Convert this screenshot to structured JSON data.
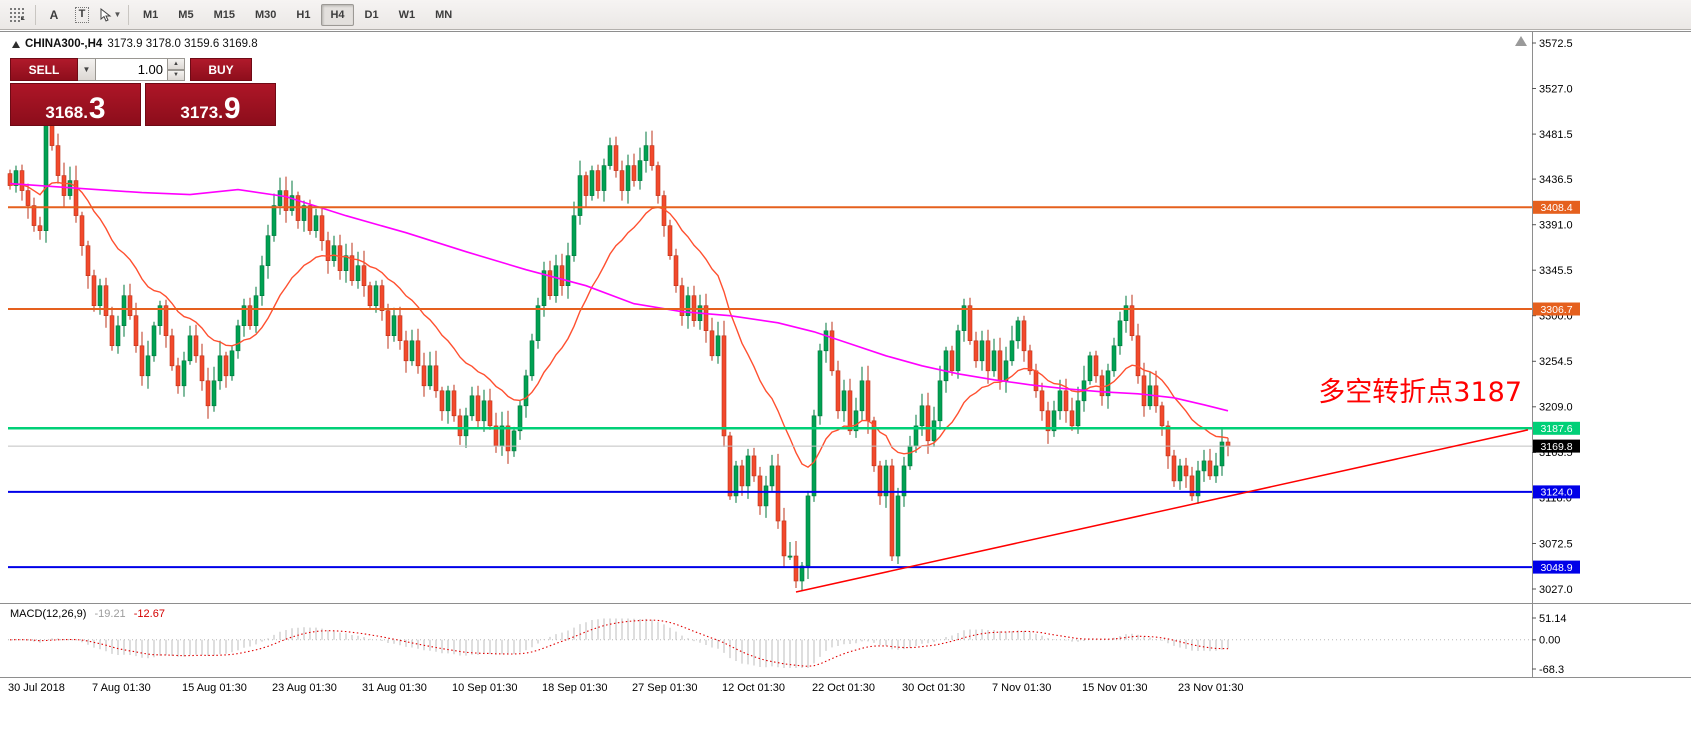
{
  "toolbar": {
    "tool_a": "A",
    "tool_t": "T",
    "timeframes": [
      {
        "label": "M1"
      },
      {
        "label": "M5"
      },
      {
        "label": "M15"
      },
      {
        "label": "M30"
      },
      {
        "label": "H1"
      },
      {
        "label": "H4",
        "active": true
      },
      {
        "label": "D1"
      },
      {
        "label": "W1"
      },
      {
        "label": "MN"
      }
    ]
  },
  "chart_header": {
    "symbol": "CHINA300-,H4",
    "ohlc": "3173.9 3178.0 3159.6 3169.8"
  },
  "trade_panel": {
    "sell_label": "SELL",
    "buy_label": "BUY",
    "volume": "1.00",
    "sell_price": {
      "base": "3168.",
      "pip": "3"
    },
    "buy_price": {
      "base": "3173.",
      "pip": "9"
    }
  },
  "annotation": {
    "text": "多空转折点3187",
    "color": "#ff0000"
  },
  "macd_header": {
    "title": "MACD(12,26,9)",
    "value_main": "-19.21",
    "value_signal": "-12.67"
  },
  "axes": {
    "price_ticks": [
      "3572.5",
      "3527.0",
      "3481.5",
      "3436.5",
      "3391.0",
      "3345.5",
      "3300.0",
      "3254.5",
      "3209.0",
      "3163.5",
      "3118.0",
      "3072.5",
      "3027.0"
    ],
    "macd_ticks": [
      {
        "v": 51.14,
        "label": "51.14"
      },
      {
        "v": 0,
        "label": "0.00"
      },
      {
        "v": -68.3,
        "label": "-68.3"
      }
    ],
    "time_ticks": [
      {
        "i": 0,
        "label": "30 Jul 2018"
      },
      {
        "i": 14,
        "label": "7 Aug 01:30"
      },
      {
        "i": 29,
        "label": "15 Aug 01:30"
      },
      {
        "i": 44,
        "label": "23 Aug 01:30"
      },
      {
        "i": 59,
        "label": "31 Aug 01:30"
      },
      {
        "i": 74,
        "label": "10 Sep 01:30"
      },
      {
        "i": 89,
        "label": "18 Sep 01:30"
      },
      {
        "i": 104,
        "label": "27 Sep 01:30"
      },
      {
        "i": 119,
        "label": "12 Oct 01:30"
      },
      {
        "i": 134,
        "label": "22 Oct 01:30"
      },
      {
        "i": 149,
        "label": "30 Oct 01:30"
      },
      {
        "i": 164,
        "label": "7 Nov 01:30"
      },
      {
        "i": 179,
        "label": "15 Nov 01:30"
      },
      {
        "i": 195,
        "label": "23 Nov 01:30"
      }
    ]
  },
  "colors": {
    "up": "#00a152",
    "up_border": "#00773c",
    "down": "#f2492c",
    "down_border": "#bd3318"
  },
  "chart_data": {
    "type": "candlestick",
    "symbol": "CHINA300-",
    "timeframe": "H4",
    "title": "CHINA300-,H4",
    "current_ohlc": {
      "open": 3173.9,
      "high": 3178.0,
      "low": 3159.6,
      "close": 3169.8
    },
    "price_range": [
      3027.0,
      3572.5
    ],
    "closes": [
      3430,
      3445,
      3425,
      3410,
      3390,
      3385,
      3495,
      3470,
      3440,
      3420,
      3435,
      3400,
      3370,
      3340,
      3310,
      3330,
      3300,
      3270,
      3290,
      3320,
      3300,
      3270,
      3240,
      3260,
      3290,
      3310,
      3280,
      3250,
      3230,
      3255,
      3280,
      3260,
      3235,
      3210,
      3235,
      3260,
      3240,
      3265,
      3290,
      3310,
      3290,
      3320,
      3350,
      3380,
      3410,
      3425,
      3405,
      3420,
      3395,
      3410,
      3385,
      3400,
      3375,
      3355,
      3370,
      3345,
      3360,
      3335,
      3350,
      3330,
      3310,
      3330,
      3305,
      3280,
      3300,
      3275,
      3255,
      3275,
      3250,
      3230,
      3250,
      3225,
      3205,
      3225,
      3200,
      3180,
      3200,
      3220,
      3195,
      3215,
      3190,
      3170,
      3190,
      3165,
      3185,
      3210,
      3240,
      3275,
      3310,
      3345,
      3320,
      3350,
      3330,
      3360,
      3400,
      3440,
      3420,
      3445,
      3425,
      3450,
      3470,
      3445,
      3425,
      3450,
      3435,
      3455,
      3470,
      3450,
      3420,
      3390,
      3360,
      3330,
      3300,
      3320,
      3295,
      3310,
      3285,
      3260,
      3280,
      3180,
      3120,
      3150,
      3130,
      3160,
      3140,
      3110,
      3130,
      3150,
      3095,
      3060,
      3060,
      3035,
      3050,
      3120,
      3200,
      3265,
      3285,
      3245,
      3205,
      3225,
      3185,
      3205,
      3235,
      3195,
      3150,
      3120,
      3150,
      3060,
      3120,
      3150,
      3170,
      3190,
      3210,
      3175,
      3195,
      3235,
      3265,
      3245,
      3285,
      3310,
      3275,
      3255,
      3275,
      3245,
      3265,
      3235,
      3255,
      3275,
      3295,
      3265,
      3245,
      3225,
      3205,
      3185,
      3205,
      3225,
      3205,
      3190,
      3215,
      3235,
      3260,
      3240,
      3220,
      3245,
      3270,
      3295,
      3310,
      3280,
      3240,
      3210,
      3230,
      3210,
      3190,
      3160,
      3135,
      3150,
      3140,
      3120,
      3145,
      3155,
      3140,
      3150,
      3173.9,
      3169.8
    ],
    "hlines": [
      {
        "price": 3408.4,
        "label": "3408.4",
        "color": "#e5601e",
        "width": 2
      },
      {
        "price": 3306.7,
        "label": "3306.7",
        "color": "#e5601e",
        "width": 2
      },
      {
        "price": 3187.6,
        "label": "3187.6",
        "color": "#00d077",
        "width": 2.5
      },
      {
        "price": 3169.8,
        "label": "3169.8",
        "color": "#000000",
        "line_color": "#c0c0c0",
        "width": 1,
        "current": true
      },
      {
        "price": 3124.0,
        "label": "3124.0",
        "color": "#0000e8",
        "width": 2
      },
      {
        "price": 3048.9,
        "label": "3048.9",
        "color": "#0000e8",
        "width": 2
      }
    ],
    "trendline": {
      "i1": 131,
      "p1": 3024,
      "i2": 253,
      "p2": 3186,
      "color": "#ff0000"
    },
    "ma_magenta": {
      "color": "#ff00ff",
      "points": [
        [
          0,
          3432
        ],
        [
          12,
          3427
        ],
        [
          22,
          3423
        ],
        [
          30,
          3421
        ],
        [
          38,
          3426
        ],
        [
          46,
          3419
        ],
        [
          56,
          3400
        ],
        [
          66,
          3383
        ],
        [
          76,
          3364
        ],
        [
          86,
          3346
        ],
        [
          96,
          3330
        ],
        [
          104,
          3312
        ],
        [
          112,
          3304
        ],
        [
          120,
          3300
        ],
        [
          128,
          3293
        ],
        [
          134,
          3284
        ],
        [
          140,
          3272
        ],
        [
          146,
          3260
        ],
        [
          152,
          3250
        ],
        [
          158,
          3242
        ],
        [
          164,
          3236
        ],
        [
          170,
          3231
        ],
        [
          176,
          3227
        ],
        [
          182,
          3224
        ],
        [
          188,
          3222
        ],
        [
          194,
          3218
        ],
        [
          199,
          3211
        ],
        [
          203,
          3205
        ]
      ]
    },
    "ma_red": {
      "color": "#ff5030",
      "ema_alpha": 0.1
    },
    "macd": {
      "params": "12,26,9",
      "hist_color": "#bdbdbd",
      "signal_color": "#e00000",
      "range": [
        -68.3,
        51.14
      ]
    }
  }
}
